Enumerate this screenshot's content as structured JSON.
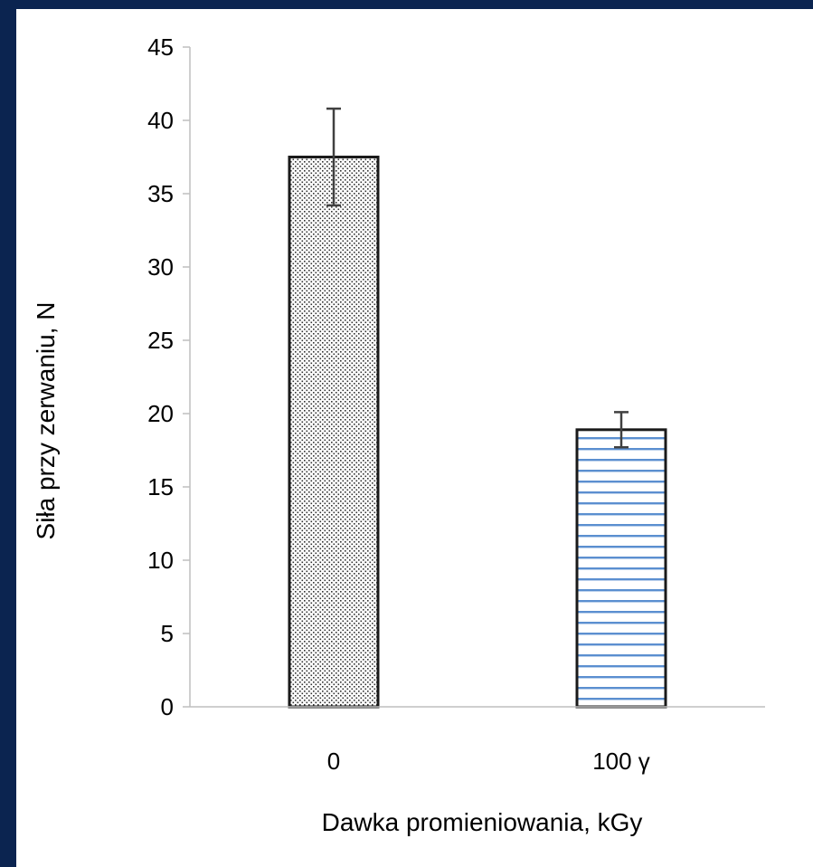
{
  "chart_data": {
    "type": "bar",
    "categories": [
      "0",
      "100 γ"
    ],
    "values": [
      37.5,
      18.9
    ],
    "errors": [
      3.3,
      1.2
    ],
    "xlabel": "Dawka promieniowania, kGy",
    "ylabel": "Siła przy zerwaniu, N",
    "ylim": [
      0,
      45
    ],
    "yticks": [
      "0",
      "5",
      "10",
      "15",
      "20",
      "25",
      "30",
      "35",
      "40",
      "45"
    ],
    "grid": false,
    "legend": "none",
    "bar_patterns": [
      "dots",
      "horizontal-lines"
    ],
    "colors": {
      "background": "#0b2450",
      "bar_outline": "#1a1a1a",
      "dot_pattern": "#333333",
      "line_pattern": "#5b8fd0",
      "error_bar": "#404040",
      "axis": "#bfbfbf"
    }
  }
}
